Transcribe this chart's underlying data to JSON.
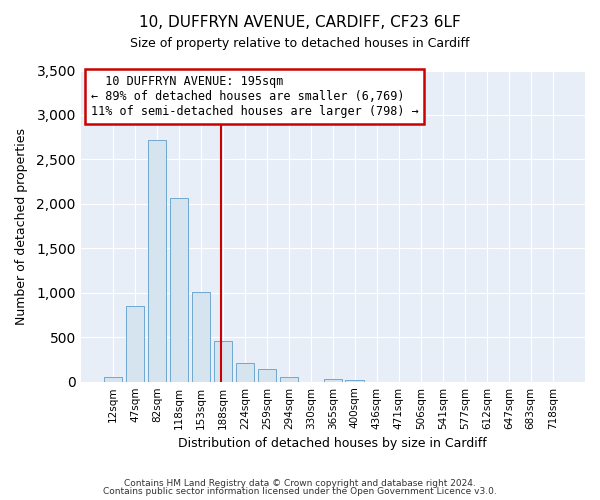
{
  "title_line1": "10, DUFFRYN AVENUE, CARDIFF, CF23 6LF",
  "title_line2": "Size of property relative to detached houses in Cardiff",
  "xlabel": "Distribution of detached houses by size in Cardiff",
  "ylabel": "Number of detached properties",
  "bar_labels": [
    "12sqm",
    "47sqm",
    "82sqm",
    "118sqm",
    "153sqm",
    "188sqm",
    "224sqm",
    "259sqm",
    "294sqm",
    "330sqm",
    "365sqm",
    "400sqm",
    "436sqm",
    "471sqm",
    "506sqm",
    "541sqm",
    "577sqm",
    "612sqm",
    "647sqm",
    "683sqm",
    "718sqm"
  ],
  "bar_values": [
    55,
    850,
    2720,
    2070,
    1010,
    460,
    205,
    145,
    55,
    0,
    25,
    15,
    0,
    0,
    0,
    0,
    0,
    0,
    0,
    0,
    0
  ],
  "bar_color": "#d6e4f0",
  "bar_edgecolor": "#6fa8d0",
  "property_line_index": 5,
  "property_line_color": "#cc0000",
  "annotation_line1": "10 DUFFRYN AVENUE: 195sqm",
  "annotation_line2": "← 89% of detached houses are smaller (6,769)",
  "annotation_line3": "11% of semi-detached houses are larger (798) →",
  "annotation_box_edgecolor": "#cc0000",
  "ylim": [
    0,
    3500
  ],
  "yticks": [
    0,
    500,
    1000,
    1500,
    2000,
    2500,
    3000,
    3500
  ],
  "plot_bg_color": "#e8eef7",
  "fig_bg_color": "#ffffff",
  "grid_color": "#ffffff",
  "footer_line1": "Contains HM Land Registry data © Crown copyright and database right 2024.",
  "footer_line2": "Contains public sector information licensed under the Open Government Licence v3.0."
}
